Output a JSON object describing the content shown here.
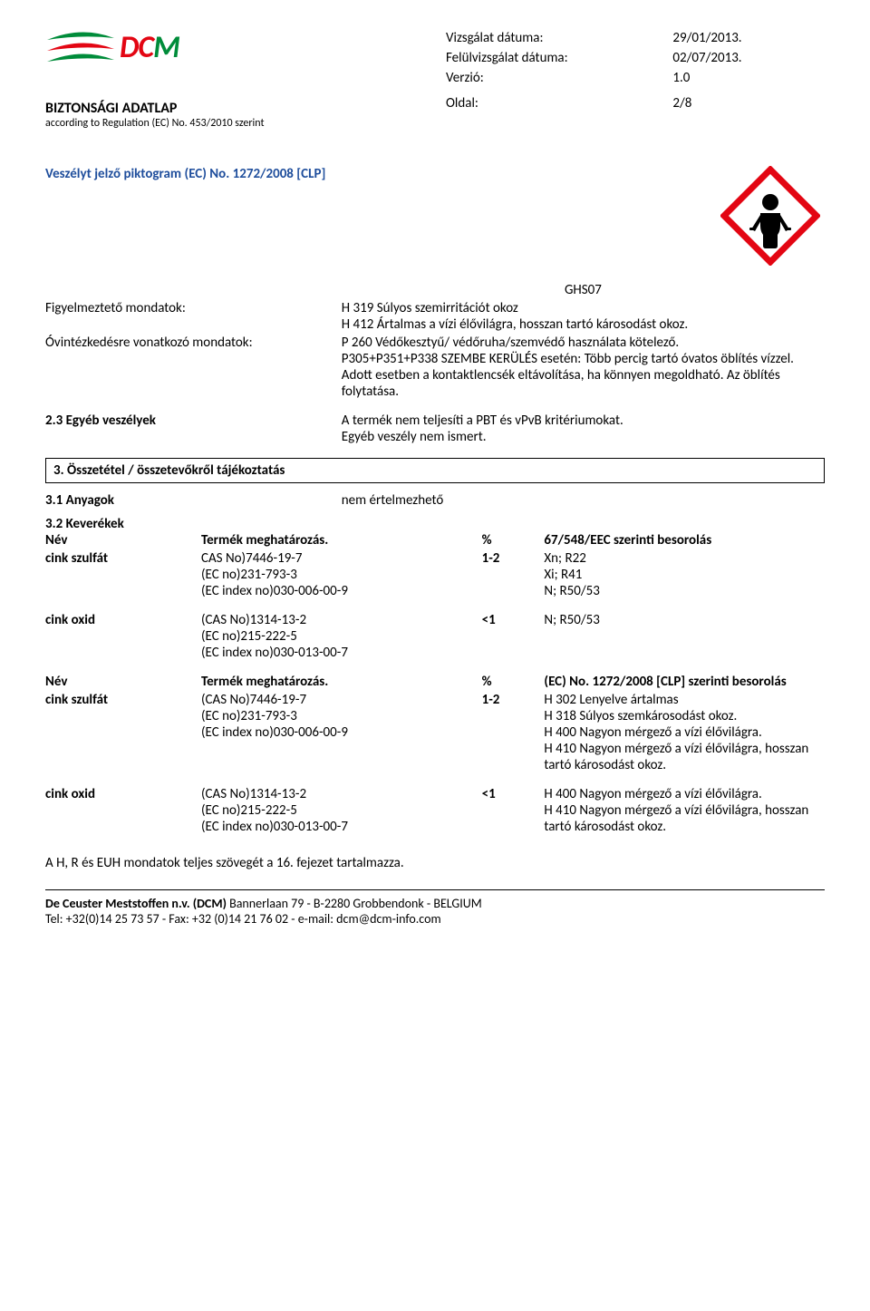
{
  "logo": {
    "swoosh_green": "#008c3a",
    "swoosh_red": "#e30613",
    "text_dc": "DC",
    "text_m": "M",
    "dc_color": "#e30613",
    "m_color": "#008c3a"
  },
  "header": {
    "rows": [
      {
        "label": "Vizsgálat dátuma:",
        "value": "29/01/2013."
      },
      {
        "label": "Felülvizsgálat dátuma:",
        "value": "02/07/2013."
      },
      {
        "label": "Verzió:",
        "value": "1.0"
      }
    ],
    "page_row": {
      "label": "Oldal:",
      "value": "2/8"
    },
    "title": "BIZTONSÁGI ADATLAP",
    "subtitle": "according to Regulation (EC) No. 453/2010 szerint"
  },
  "hazard": {
    "pictogram_label": "Veszélyt jelző piktogram (EC) No. 1272/2008 [CLP]",
    "ghs_code": "GHS07",
    "ghs_border": "#e30613",
    "rows": [
      {
        "label": "Figyelmeztető mondatok:",
        "lines": [
          "H 319 Súlyos szemirritációt okoz",
          "H 412 Ártalmas a vízi élővilágra, hosszan tartó károsodást okoz."
        ]
      },
      {
        "label": "Óvintézkedésre vonatkozó mondatok:",
        "lines": [
          "P 260 Védőkesztyű/ védőruha/szemvédő használata kötelező.",
          "P305+P351+P338 SZEMBE KERÜLÉS esetén: Több percig tartó óvatos öblítés vízzel. Adott esetben a kontaktlencsék eltávolítása, ha könnyen megoldható. Az öblítés folytatása."
        ]
      }
    ],
    "other": {
      "label": "2.3 Egyéb veszélyek",
      "lines": [
        "A termék nem teljesíti a PBT és vPvB kritériumokat.",
        "Egyéb veszély nem ismert."
      ]
    }
  },
  "section3": {
    "title": "3. Összetétel / összetevőkről tájékoztatás",
    "sub1": {
      "label": "3.1 Anyagok",
      "value": "nem értelmezhető"
    },
    "sub2": "3.2 Keverékek",
    "head1": {
      "a": "Név",
      "b": "Termék meghatározás.",
      "c": "%",
      "d": "67/548/EEC szerinti besorolás"
    },
    "rows1": [
      {
        "a": "cink szulfát",
        "b": [
          "CAS No)7446-19-7",
          "(EC no)231-793-3",
          "(EC index no)030-006-00-9"
        ],
        "c": "1-2",
        "d": [
          "Xn; R22",
          "Xi; R41",
          "N; R50/53"
        ]
      },
      {
        "a": "cink oxid",
        "b": [
          "(CAS No)1314-13-2",
          "(EC no)215-222-5",
          "(EC index no)030-013-00-7"
        ],
        "c": "<1",
        "d": [
          "N; R50/53"
        ]
      }
    ],
    "head2": {
      "a": "Név",
      "b": "Termék meghatározás.",
      "c": "%",
      "d": "(EC) No. 1272/2008 [CLP] szerinti besorolás"
    },
    "rows2": [
      {
        "a": "cink szulfát",
        "b": [
          "(CAS No)7446-19-7",
          "(EC no)231-793-3",
          "(EC index no)030-006-00-9"
        ],
        "c": "1-2",
        "d": [
          "H 302 Lenyelve ártalmas",
          "H 318 Súlyos szemkárosodást okoz.",
          "H 400 Nagyon mérgező a vízi élővilágra.",
          "H 410 Nagyon mérgező a vízi élővilágra, hosszan tartó károsodást okoz."
        ]
      },
      {
        "a": "cink oxid",
        "b": [
          "(CAS No)1314-13-2",
          "(EC no)215-222-5",
          "(EC index no)030-013-00-7"
        ],
        "c": "<1",
        "d": [
          "H 400 Nagyon mérgező a vízi élővilágra.",
          "H 410 Nagyon mérgező a vízi élővilágra, hosszan tartó károsodást okoz."
        ]
      }
    ],
    "footnote": "A H, R és EUH mondatok teljes szövegét a 16. fejezet tartalmazza."
  },
  "footer": {
    "line1_bold": "De Ceuster Meststoffen n.v. (DCM)",
    "line1_rest": " Bannerlaan 79 - B-2280 Grobbendonk - BELGIUM",
    "line2": "Tel: +32(0)14 25 73 57 - Fax: +32 (0)14 21 76 02 - e-mail: dcm@dcm-info.com"
  }
}
